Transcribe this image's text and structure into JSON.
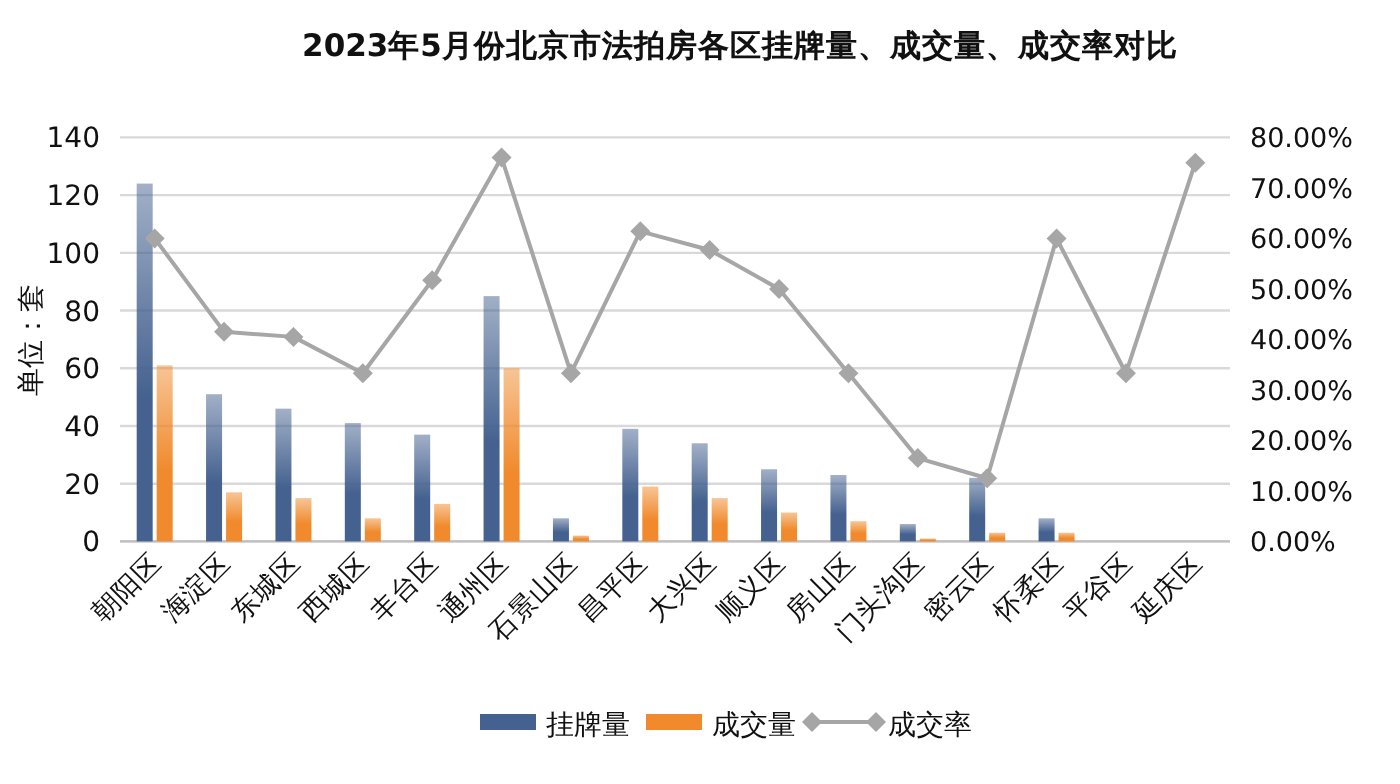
{
  "chart_data": {
    "type": "bar",
    "title": "2023年5月份北京市法拍房各区挂牌量、成交量、成交率对比",
    "ylabel": "单位：套",
    "categories": [
      "朝阳区",
      "海淀区",
      "东城区",
      "西城区",
      "丰台区",
      "通州区",
      "石景山区",
      "昌平区",
      "大兴区",
      "顺义区",
      "房山区",
      "门头沟区",
      "密云区",
      "怀柔区",
      "平谷区",
      "延庆区"
    ],
    "series": [
      {
        "name": "挂牌量",
        "color": "#44618f",
        "values": [
          124,
          51,
          46,
          41,
          37,
          85,
          8,
          39,
          34,
          25,
          23,
          6,
          22,
          8,
          0,
          0
        ]
      },
      {
        "name": "成交量",
        "color": "#f08a2c",
        "values": [
          61,
          17,
          15,
          8,
          13,
          60,
          2,
          19,
          15,
          10,
          7,
          1,
          3,
          3,
          0,
          0
        ]
      },
      {
        "name": "成交率",
        "type": "line",
        "axis": "y2",
        "color": "#a6a6a6",
        "marker": "diamond",
        "values": [
          60,
          41.5,
          40.5,
          33.3,
          51.7,
          76,
          33.3,
          61.4,
          57.7,
          50,
          33.3,
          16.5,
          12.5,
          60,
          33.3,
          75
        ]
      }
    ],
    "ylim": [
      0,
      140
    ],
    "yticks": [
      0,
      20,
      40,
      60,
      80,
      100,
      120,
      140
    ],
    "y2lim": [
      0,
      80
    ],
    "y2ticks": [
      {
        "value": 0,
        "label": "0.00%"
      },
      {
        "value": 10,
        "label": "10.00%"
      },
      {
        "value": 20,
        "label": "20.00%"
      },
      {
        "value": 30,
        "label": "30.00%"
      },
      {
        "value": 40,
        "label": "40.00%"
      },
      {
        "value": 50,
        "label": "50.00%"
      },
      {
        "value": 60,
        "label": "60.00%"
      },
      {
        "value": 70,
        "label": "70.00%"
      },
      {
        "value": 80,
        "label": "80.00%"
      }
    ],
    "grid": "y",
    "legend": "bottom"
  }
}
